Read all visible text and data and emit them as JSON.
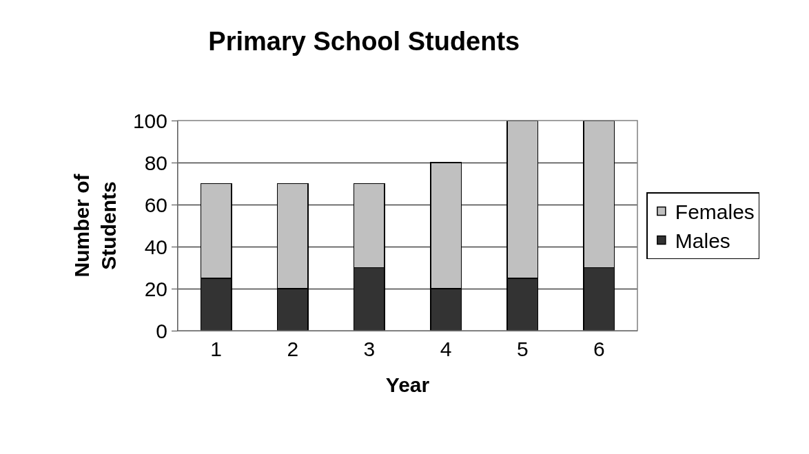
{
  "chart_data": {
    "type": "bar",
    "title": "Primary School Students",
    "xlabel": "Year",
    "ylabel": "Number of Students",
    "categories": [
      "1",
      "2",
      "3",
      "4",
      "5",
      "6"
    ],
    "series": [
      {
        "name": "Males",
        "color": "#333333",
        "values": [
          25,
          20,
          30,
          20,
          25,
          30
        ]
      },
      {
        "name": "Females",
        "color": "#c0c0c0",
        "values": [
          45,
          50,
          40,
          60,
          75,
          70
        ]
      }
    ],
    "stacked": true,
    "ylim": [
      0,
      100
    ],
    "yticks": [
      0,
      20,
      40,
      60,
      80,
      100
    ],
    "grid": "y",
    "legend": "right"
  }
}
